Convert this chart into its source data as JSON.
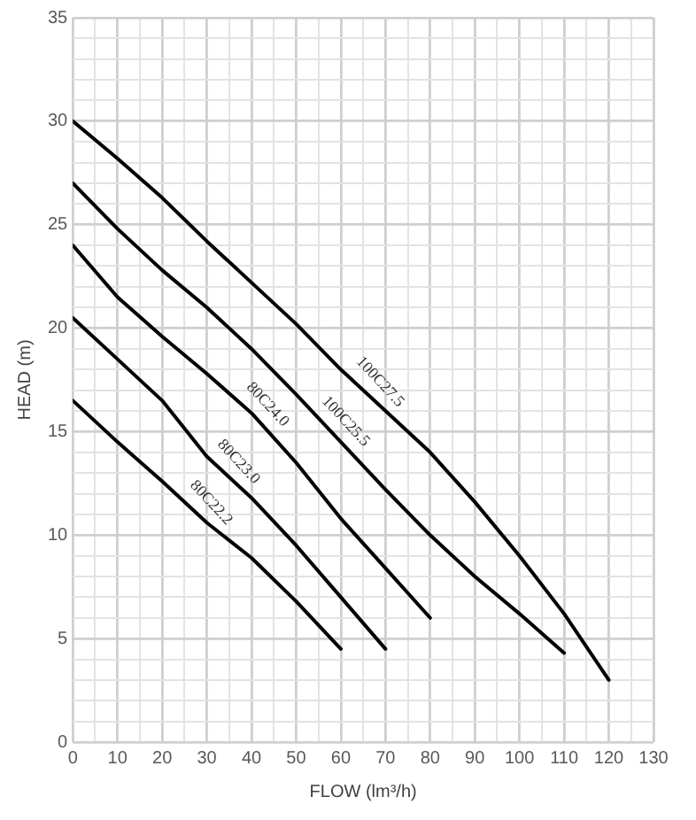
{
  "chart_data": {
    "type": "line",
    "xlabel": "FLOW (lm³/h)",
    "ylabel": "HEAD (m)",
    "xlim": [
      0,
      130
    ],
    "ylim": [
      0,
      35
    ],
    "xticks": [
      0,
      {
        "value": 5,
        "label": null
      },
      10,
      {
        "value": 15,
        "label": null
      },
      20,
      {
        "value": 25,
        "label": null
      },
      30,
      {
        "value": 35,
        "label": null
      },
      40,
      {
        "value": 45,
        "label": null
      },
      50,
      {
        "value": 55,
        "label": null
      },
      60,
      {
        "value": 65,
        "label": null
      },
      70,
      {
        "value": 75,
        "label": null
      },
      80,
      {
        "value": 85,
        "label": null
      },
      90,
      {
        "value": 95,
        "label": null
      },
      100,
      {
        "value": 105,
        "label": null
      },
      110,
      {
        "value": 115,
        "label": null
      },
      120,
      {
        "value": 125,
        "label": null
      },
      130
    ],
    "yticks": [
      0,
      {
        "value": 1,
        "label": null
      },
      {
        "value": 2,
        "label": null
      },
      {
        "value": 3,
        "label": null
      },
      {
        "value": 4,
        "label": null
      },
      5,
      {
        "value": 6,
        "label": null
      },
      {
        "value": 7,
        "label": null
      },
      {
        "value": 8,
        "label": null
      },
      {
        "value": 9,
        "label": null
      },
      10,
      {
        "value": 11,
        "label": null
      },
      {
        "value": 12,
        "label": null
      },
      {
        "value": 13,
        "label": null
      },
      {
        "value": 14,
        "label": null
      },
      15,
      {
        "value": 16,
        "label": null
      },
      {
        "value": 17,
        "label": null
      },
      {
        "value": 18,
        "label": null
      },
      {
        "value": 19,
        "label": null
      },
      20,
      {
        "value": 21,
        "label": null
      },
      {
        "value": 22,
        "label": null
      },
      {
        "value": 23,
        "label": null
      },
      {
        "value": 24,
        "label": null
      },
      25,
      {
        "value": 26,
        "label": null
      },
      {
        "value": 27,
        "label": null
      },
      {
        "value": 28,
        "label": null
      },
      {
        "value": 29,
        "label": null
      },
      30,
      {
        "value": 31,
        "label": null
      },
      {
        "value": 32,
        "label": null
      },
      {
        "value": 33,
        "label": null
      },
      {
        "value": 34,
        "label": null
      },
      35
    ],
    "grid": true,
    "legend": false,
    "marker": "none",
    "line_style": "solid",
    "series": [
      {
        "name": "100C27.5",
        "color": "#000000",
        "x": [
          0,
          10,
          20,
          30,
          40,
          50,
          60,
          70,
          80,
          90,
          100,
          110,
          120
        ],
        "values": [
          30,
          28.2,
          26.3,
          24.2,
          22.2,
          20.2,
          18,
          16,
          14,
          11.6,
          9,
          6.2,
          3
        ]
      },
      {
        "name": "100C25.5",
        "color": "#000000",
        "x": [
          0,
          10,
          20,
          30,
          40,
          50,
          60,
          70,
          80,
          90,
          100,
          110
        ],
        "values": [
          27,
          24.8,
          22.8,
          21,
          19,
          16.8,
          14.5,
          12.2,
          10,
          8,
          6.2,
          4.3
        ]
      },
      {
        "name": "80C24.0",
        "color": "#000000",
        "x": [
          0,
          10,
          20,
          30,
          40,
          50,
          60,
          70,
          80
        ],
        "values": [
          24,
          21.5,
          19.6,
          17.8,
          15.9,
          13.5,
          10.8,
          8.4,
          6
        ]
      },
      {
        "name": "80C23.0",
        "color": "#000000",
        "x": [
          0,
          10,
          20,
          30,
          40,
          50,
          60,
          70
        ],
        "values": [
          20.5,
          18.5,
          16.5,
          13.8,
          11.8,
          9.5,
          7,
          4.5
        ]
      },
      {
        "name": "80C22.2",
        "color": "#000000",
        "x": [
          0,
          10,
          20,
          30,
          40,
          50,
          60
        ],
        "values": [
          16.5,
          14.5,
          12.6,
          10.6,
          8.9,
          6.8,
          4.5
        ]
      }
    ]
  }
}
